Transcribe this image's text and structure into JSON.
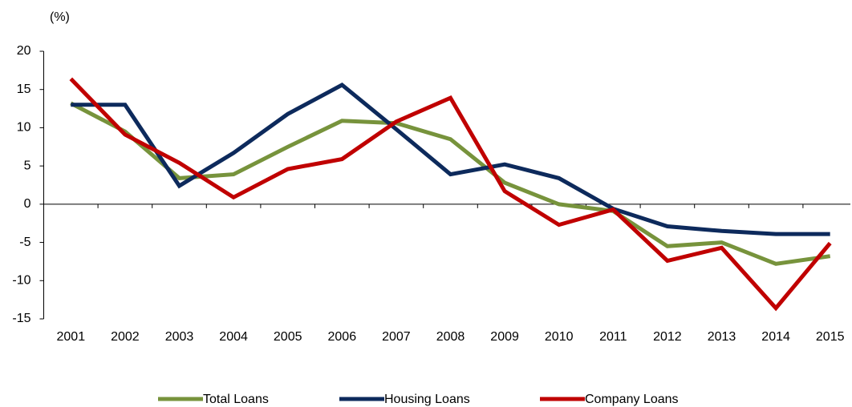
{
  "chart_data": {
    "type": "line",
    "y_unit_label": "(%)",
    "categories": [
      "2001",
      "2002",
      "2003",
      "2004",
      "2005",
      "2006",
      "2007",
      "2008",
      "2009",
      "2010",
      "2011",
      "2012",
      "2013",
      "2014",
      "2015"
    ],
    "series": [
      {
        "name": "Total Loans",
        "color": "#77933c",
        "values": [
          13.2,
          9.5,
          3.4,
          3.9,
          7.5,
          10.9,
          10.6,
          8.5,
          2.8,
          0,
          -0.9,
          -5.5,
          -5.0,
          -7.8,
          -6.8
        ]
      },
      {
        "name": "Housing Loans",
        "color": "#0d2a5c",
        "values": [
          13.0,
          13.0,
          2.4,
          6.7,
          11.8,
          15.6,
          9.8,
          3.9,
          5.2,
          3.4,
          -0.6,
          -2.9,
          -3.5,
          -3.9,
          -3.9
        ]
      },
      {
        "name": "Company Loans",
        "color": "#c00000",
        "values": [
          16.4,
          9.1,
          5.4,
          0.9,
          4.6,
          5.9,
          10.8,
          13.9,
          1.7,
          -2.7,
          -0.7,
          -7.4,
          -5.7,
          -13.6,
          -5.1
        ]
      }
    ],
    "ylim": [
      -15,
      20
    ],
    "yticks": [
      -15,
      -10,
      -5,
      0,
      5,
      10,
      15,
      20
    ],
    "legend": "bottom"
  }
}
